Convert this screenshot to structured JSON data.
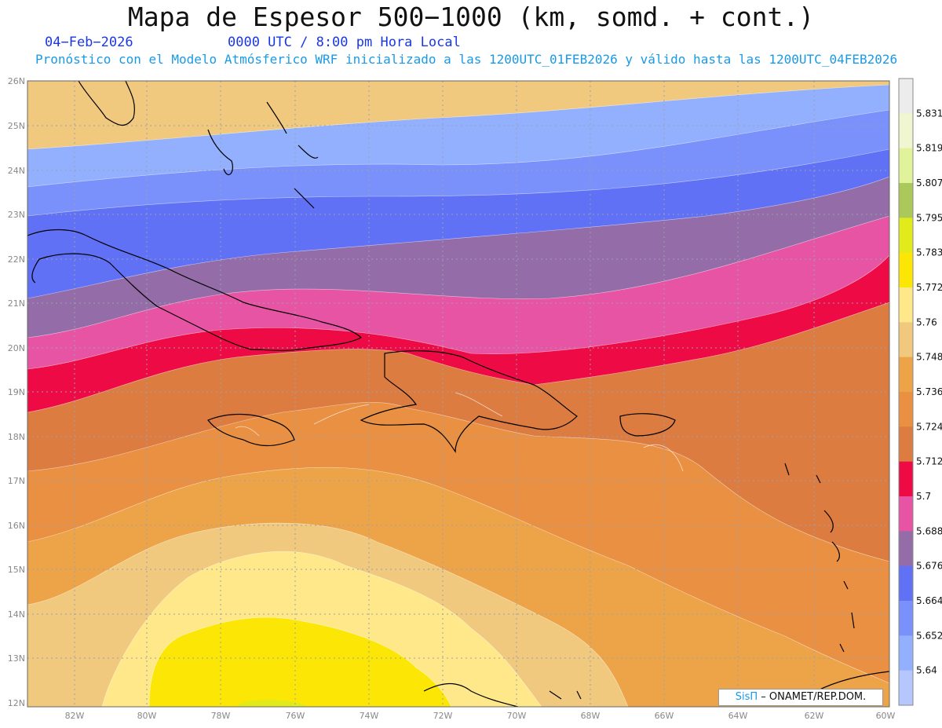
{
  "header": {
    "title": "Mapa de Espesor 500−1000 (km, somd. + cont.)",
    "date": "04−Feb−2026",
    "time": "0000 UTC / 8:00 pm Hora Local",
    "forecast": "Pronóstico con el Modelo Atmósferico WRF inicializado a las 1200UTC_01FEB2026 y válido hasta las  1200UTC_04FEB2026"
  },
  "map": {
    "lat_labels": [
      "26N",
      "25N",
      "24N",
      "23N",
      "22N",
      "21N",
      "20N",
      "19N",
      "18N",
      "17N",
      "16N",
      "15N",
      "14N",
      "13N",
      "12N"
    ],
    "lon_labels": [
      "82W",
      "80W",
      "78W",
      "76W",
      "74W",
      "72W",
      "70W",
      "68W",
      "66W",
      "64W",
      "62W",
      "60W"
    ],
    "lat_range": [
      12,
      26
    ],
    "lon_range": [
      -83.2,
      -60
    ],
    "gridlines": true
  },
  "colorbar": {
    "labels": [
      "5.64",
      "5.652",
      "5.664",
      "5.676",
      "5.688",
      "5.7",
      "5.712",
      "5.724",
      "5.736",
      "5.748",
      "5.76",
      "5.772",
      "5.783",
      "5.795",
      "5.807",
      "5.819",
      "5.831"
    ],
    "colors": [
      "#b6c6fe",
      "#92b0fd",
      "#7a90fa",
      "#6071f5",
      "#946ca8",
      "#e854a4",
      "#ee0a44",
      "#dc7c40",
      "#e99043",
      "#eda449",
      "#f1c97e",
      "#fee88a",
      "#fbe606",
      "#e1ea1b",
      "#aac95a",
      "#e1f39a",
      "#f0f6d0",
      "#ececec"
    ]
  },
  "credit": {
    "brand": "SisΠ",
    "text": "– ONAMET/REP.DOM."
  }
}
